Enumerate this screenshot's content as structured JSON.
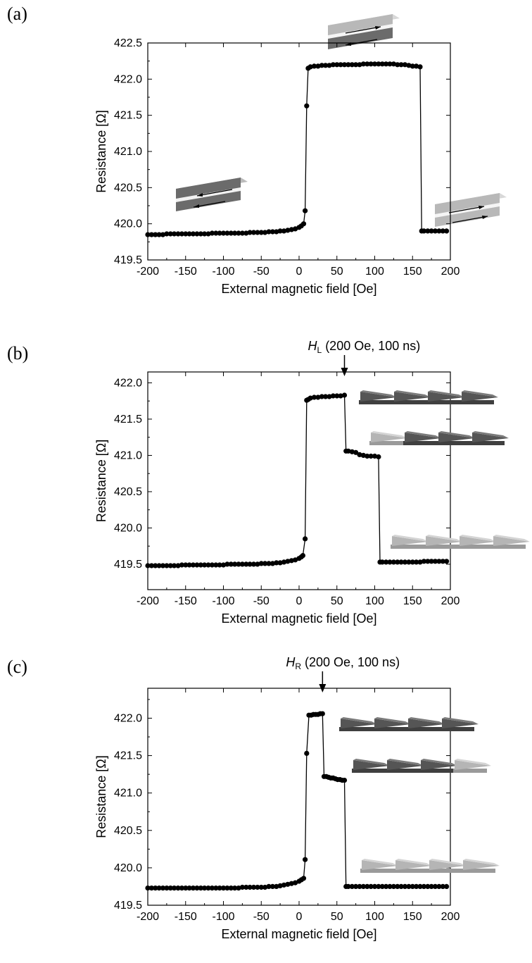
{
  "chart_data": [
    {
      "type": "scatter",
      "panel_label": "(a)",
      "title": "",
      "xlabel": "External magnetic field [Oe]",
      "ylabel": "Resistance [Ω]",
      "xlim": [
        -200,
        200
      ],
      "ylim": [
        419.5,
        422.5
      ],
      "xticks": [
        "-200",
        "-150",
        "-100",
        "-50",
        "0",
        "50",
        "100",
        "150",
        "200"
      ],
      "yticks": [
        "419.5",
        "420.0",
        "420.5",
        "421.0",
        "421.5",
        "422.0",
        "422.5"
      ],
      "grid": false,
      "annotation": null,
      "insets": [
        "antiparallel-strip",
        "parallel-strip-left",
        "parallel-strip-right"
      ],
      "series": [
        {
          "marker": "circle",
          "line": true,
          "x": [
            -200,
            -195,
            -190,
            -185,
            -180,
            -175,
            -170,
            -165,
            -160,
            -155,
            -150,
            -145,
            -140,
            -135,
            -130,
            -125,
            -120,
            -115,
            -110,
            -105,
            -100,
            -95,
            -90,
            -85,
            -80,
            -75,
            -70,
            -65,
            -60,
            -55,
            -50,
            -45,
            -40,
            -35,
            -30,
            -25,
            -20,
            -15,
            -10,
            -5,
            0,
            3,
            6,
            8,
            10,
            12,
            15,
            20,
            25,
            30,
            35,
            40,
            45,
            50,
            55,
            60,
            65,
            70,
            75,
            80,
            85,
            90,
            95,
            100,
            105,
            110,
            115,
            120,
            125,
            130,
            135,
            140,
            145,
            150,
            155,
            160,
            162,
            165,
            170,
            175,
            180,
            185,
            190,
            195
          ],
          "y": [
            419.85,
            419.85,
            419.85,
            419.85,
            419.85,
            419.86,
            419.86,
            419.86,
            419.86,
            419.86,
            419.86,
            419.86,
            419.86,
            419.86,
            419.86,
            419.86,
            419.86,
            419.87,
            419.87,
            419.87,
            419.87,
            419.87,
            419.87,
            419.87,
            419.87,
            419.87,
            419.87,
            419.88,
            419.88,
            419.88,
            419.88,
            419.88,
            419.89,
            419.89,
            419.89,
            419.9,
            419.9,
            419.91,
            419.92,
            419.93,
            419.95,
            419.97,
            420.0,
            420.18,
            421.63,
            422.15,
            422.17,
            422.18,
            422.18,
            422.19,
            422.19,
            422.19,
            422.2,
            422.2,
            422.2,
            422.2,
            422.2,
            422.2,
            422.2,
            422.2,
            422.21,
            422.21,
            422.21,
            422.21,
            422.21,
            422.21,
            422.21,
            422.21,
            422.21,
            422.2,
            422.2,
            422.2,
            422.19,
            422.18,
            422.18,
            422.17,
            419.9,
            419.9,
            419.9,
            419.9,
            419.9,
            419.9,
            419.9,
            419.9
          ]
        }
      ]
    },
    {
      "type": "scatter",
      "panel_label": "(b)",
      "title": "",
      "xlabel": "External magnetic field [Oe]",
      "ylabel": "Resistance [Ω]",
      "xlim": [
        -200,
        200
      ],
      "ylim": [
        419.15,
        422.15
      ],
      "xticks": [
        "-200",
        "-150",
        "-100",
        "-50",
        "0",
        "50",
        "100",
        "150",
        "200"
      ],
      "yticks": [
        "419.5",
        "420.0",
        "420.5",
        "421.0",
        "421.5",
        "422.0"
      ],
      "grid": false,
      "annotation": {
        "main": "H",
        "sub": "L",
        "rest": " (200 Oe, 100 ns)",
        "x": 60
      },
      "insets": [
        "domain-row-all-dark",
        "domain-row-one-light",
        "domain-row-all-light"
      ],
      "series": [
        {
          "marker": "circle",
          "line": true,
          "x": [
            -200,
            -195,
            -190,
            -185,
            -180,
            -175,
            -170,
            -165,
            -160,
            -155,
            -150,
            -145,
            -140,
            -135,
            -130,
            -125,
            -120,
            -115,
            -110,
            -105,
            -100,
            -95,
            -90,
            -85,
            -80,
            -75,
            -70,
            -65,
            -60,
            -55,
            -50,
            -45,
            -40,
            -35,
            -30,
            -25,
            -20,
            -15,
            -10,
            -5,
            0,
            3,
            5,
            8,
            10,
            12,
            15,
            20,
            25,
            30,
            35,
            40,
            45,
            50,
            55,
            60,
            62,
            65,
            70,
            75,
            80,
            85,
            90,
            95,
            100,
            105,
            107,
            110,
            115,
            120,
            125,
            130,
            135,
            140,
            145,
            150,
            155,
            160,
            165,
            170,
            175,
            180,
            185,
            190,
            195
          ],
          "y": [
            419.48,
            419.48,
            419.48,
            419.48,
            419.48,
            419.48,
            419.48,
            419.48,
            419.48,
            419.49,
            419.49,
            419.49,
            419.49,
            419.49,
            419.49,
            419.49,
            419.49,
            419.49,
            419.49,
            419.49,
            419.49,
            419.5,
            419.5,
            419.5,
            419.5,
            419.5,
            419.5,
            419.5,
            419.5,
            419.5,
            419.51,
            419.51,
            419.51,
            419.51,
            419.52,
            419.52,
            419.53,
            419.54,
            419.55,
            419.56,
            419.58,
            419.6,
            419.62,
            419.85,
            421.76,
            421.77,
            421.79,
            421.8,
            421.8,
            421.81,
            421.81,
            421.81,
            421.82,
            421.82,
            421.82,
            421.83,
            421.06,
            421.06,
            421.05,
            421.04,
            421.01,
            421.0,
            420.99,
            420.99,
            420.99,
            420.98,
            419.53,
            419.53,
            419.53,
            419.53,
            419.53,
            419.53,
            419.53,
            419.53,
            419.53,
            419.53,
            419.53,
            419.53,
            419.54,
            419.54,
            419.54,
            419.54,
            419.54,
            419.54,
            419.54
          ]
        }
      ]
    },
    {
      "type": "scatter",
      "panel_label": "(c)",
      "title": "",
      "xlabel": "External magnetic field [Oe]",
      "ylabel": "Resistance [Ω]",
      "xlim": [
        -200,
        200
      ],
      "ylim": [
        419.5,
        422.4
      ],
      "xticks": [
        "-200",
        "-150",
        "-100",
        "-50",
        "0",
        "50",
        "100",
        "150",
        "200"
      ],
      "yticks": [
        "419.5",
        "420.0",
        "420.5",
        "421.0",
        "421.5",
        "422.0"
      ],
      "grid": false,
      "annotation": {
        "main": "H",
        "sub": "R",
        "rest": " (200 Oe, 100 ns)",
        "x": 31
      },
      "insets": [
        "domain-row-all-dark",
        "domain-row-one-light-right",
        "domain-row-all-light"
      ],
      "series": [
        {
          "marker": "circle",
          "line": true,
          "x": [
            -200,
            -195,
            -190,
            -185,
            -180,
            -175,
            -170,
            -165,
            -160,
            -155,
            -150,
            -145,
            -140,
            -135,
            -130,
            -125,
            -120,
            -115,
            -110,
            -105,
            -100,
            -95,
            -90,
            -85,
            -80,
            -75,
            -70,
            -65,
            -60,
            -55,
            -50,
            -45,
            -40,
            -35,
            -30,
            -25,
            -20,
            -15,
            -10,
            -5,
            0,
            3,
            6,
            8,
            10,
            13,
            16,
            19,
            22,
            25,
            28,
            31,
            33,
            36,
            39,
            42,
            45,
            48,
            51,
            54,
            57,
            60,
            62,
            65,
            70,
            75,
            80,
            85,
            90,
            95,
            100,
            105,
            110,
            115,
            120,
            125,
            130,
            135,
            140,
            145,
            150,
            155,
            160,
            165,
            170,
            175,
            180,
            185,
            190,
            195
          ],
          "y": [
            419.73,
            419.73,
            419.73,
            419.73,
            419.73,
            419.73,
            419.73,
            419.73,
            419.73,
            419.73,
            419.73,
            419.73,
            419.73,
            419.73,
            419.73,
            419.73,
            419.73,
            419.73,
            419.73,
            419.73,
            419.73,
            419.73,
            419.73,
            419.73,
            419.73,
            419.74,
            419.74,
            419.74,
            419.74,
            419.74,
            419.74,
            419.74,
            419.75,
            419.75,
            419.75,
            419.76,
            419.77,
            419.78,
            419.79,
            419.8,
            419.82,
            419.84,
            419.86,
            420.11,
            421.53,
            422.04,
            422.04,
            422.05,
            422.05,
            422.05,
            422.06,
            422.06,
            421.22,
            421.22,
            421.21,
            421.2,
            421.2,
            421.19,
            421.18,
            421.18,
            421.17,
            421.17,
            419.75,
            419.75,
            419.75,
            419.75,
            419.75,
            419.75,
            419.75,
            419.75,
            419.75,
            419.75,
            419.75,
            419.75,
            419.75,
            419.75,
            419.75,
            419.75,
            419.75,
            419.75,
            419.75,
            419.75,
            419.75,
            419.75,
            419.75,
            419.75,
            419.75,
            419.75,
            419.75,
            419.75
          ]
        }
      ]
    }
  ]
}
